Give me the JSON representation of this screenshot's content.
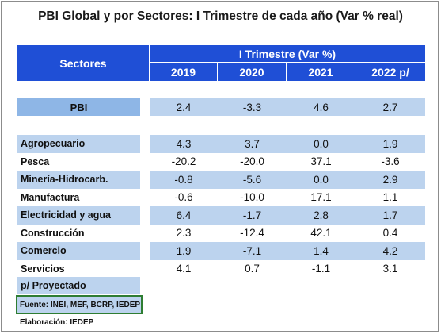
{
  "title": "PBI Global y por Sectores: I Trimestre de cada año (Var % real)",
  "header": {
    "sectors_label": "Sectores",
    "period_label": "I Trimestre (Var %)",
    "years": [
      "2019",
      "2020",
      "2021",
      "2022 p/"
    ]
  },
  "pbi": {
    "label": "PBI",
    "values": [
      "2.4",
      "-3.3",
      "4.6",
      "2.7"
    ]
  },
  "rows": [
    {
      "label": "Agropecuario",
      "values": [
        "4.3",
        "3.7",
        "0.0",
        "1.9"
      ]
    },
    {
      "label": "Pesca",
      "values": [
        "-20.2",
        "-20.0",
        "37.1",
        "-3.6"
      ]
    },
    {
      "label": "Minería-Hidrocarb.",
      "values": [
        "-0.8",
        "-5.6",
        "0.0",
        "2.9"
      ]
    },
    {
      "label": "Manufactura",
      "values": [
        "-0.6",
        "-10.0",
        "17.1",
        "1.1"
      ]
    },
    {
      "label": "Electricidad y agua",
      "values": [
        "6.4",
        "-1.7",
        "2.8",
        "1.7"
      ]
    },
    {
      "label": "Construcción",
      "values": [
        "2.3",
        "-12.4",
        "42.1",
        "0.4"
      ]
    },
    {
      "label": "Comercio",
      "values": [
        "1.9",
        "-7.1",
        "1.4",
        "4.2"
      ]
    },
    {
      "label": "Servicios",
      "values": [
        "4.1",
        "0.7",
        "-1.1",
        "3.1"
      ]
    }
  ],
  "notes": {
    "projected": "p/ Proyectado",
    "source": "Fuente: INEI, MEF, BCRP, IEDEP",
    "elaboration": "Elaboración: IEDEP"
  }
}
